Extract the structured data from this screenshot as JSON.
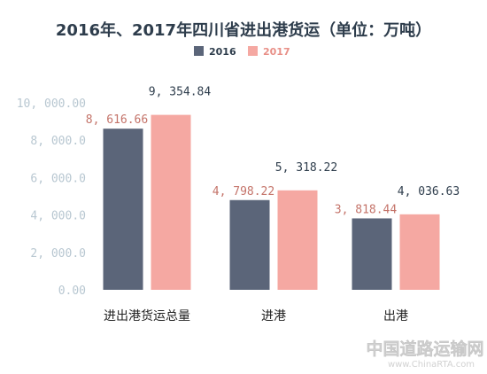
{
  "chart_data": {
    "type": "bar",
    "title": "2016年、2017年四川省进出港货运（单位：万吨）",
    "categories": [
      "进出港货运总量",
      "进港",
      "出港"
    ],
    "series": [
      {
        "name": "2016",
        "values": [
          8616.66,
          4798.22,
          3818.44
        ],
        "labels": [
          "8, 616.66",
          "4, 798.22",
          "3, 818.44"
        ]
      },
      {
        "name": "2017",
        "values": [
          9354.84,
          5318.22,
          4036.63
        ],
        "labels": [
          "9, 354.84",
          "5, 318.22",
          "4, 036.63"
        ]
      }
    ],
    "yticks": [
      0,
      2000,
      4000,
      6000,
      8000,
      10000
    ],
    "ytick_labels": [
      "0.00",
      "2, 000.0",
      "4, 000.0",
      "6, 000.0",
      "8, 000.0",
      "10, 000.00"
    ],
    "ylim": [
      0,
      10000
    ],
    "grid": false,
    "legend": "top-center",
    "colors": {
      "2016": "#5b6579",
      "2017": "#f5a8a2",
      "title": "#2e3d4c",
      "axis_labels": "#b8c7d1",
      "label_2016": "#c47369"
    }
  },
  "watermark": {
    "line1": "中国道路运输网",
    "line2": "www.ChinaRTA.com"
  }
}
